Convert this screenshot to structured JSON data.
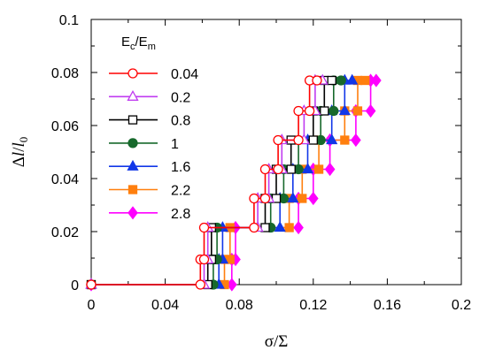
{
  "chart_data": {
    "type": "line",
    "title": "",
    "xlabel": "σ/Σ",
    "ylabel": {
      "parts": [
        "Δ",
        "l",
        "/",
        "l"
      ],
      "sub": "0"
    },
    "xlim": [
      0,
      0.2
    ],
    "ylim": [
      0,
      0.1
    ],
    "xticks": [
      "0",
      "0.04",
      "0.08",
      "0.12",
      "0.16",
      "0.2"
    ],
    "yticks": [
      "0",
      "0.02",
      "0.04",
      "0.06",
      "0.08",
      "0.1"
    ],
    "grid": false,
    "legend": {
      "title": {
        "parts": [
          "E",
          "c",
          "/E",
          "m"
        ]
      },
      "placement": "top-left"
    },
    "series": [
      {
        "name": "0.04",
        "color": "#ff0000",
        "marker": "circle",
        "filled": false,
        "x": [
          0,
          0.059,
          0.059,
          0.061,
          0.061,
          0.088,
          0.088,
          0.094,
          0.094,
          0.101,
          0.101,
          0.112,
          0.112,
          0.118,
          0.118,
          0.122
        ],
        "y": [
          0,
          0,
          0.0095,
          0.0095,
          0.0215,
          0.0215,
          0.0325,
          0.0325,
          0.0435,
          0.0435,
          0.0545,
          0.0545,
          0.0655,
          0.0655,
          0.077,
          0.077
        ]
      },
      {
        "name": "0.2",
        "color": "#c03cf0",
        "marker": "triangle",
        "filled": false,
        "x": [
          0,
          0.061,
          0.061,
          0.063,
          0.063,
          0.09,
          0.09,
          0.096,
          0.096,
          0.103,
          0.103,
          0.115,
          0.115,
          0.121,
          0.121,
          0.125
        ],
        "y": [
          0,
          0,
          0.0095,
          0.0095,
          0.0215,
          0.0215,
          0.0325,
          0.0325,
          0.0435,
          0.0435,
          0.0545,
          0.0545,
          0.0655,
          0.0655,
          0.077,
          0.077
        ]
      },
      {
        "name": "0.8",
        "color": "#000000",
        "marker": "square",
        "filled": false,
        "x": [
          0,
          0.063,
          0.063,
          0.065,
          0.065,
          0.094,
          0.094,
          0.1,
          0.1,
          0.108,
          0.108,
          0.12,
          0.12,
          0.126,
          0.126,
          0.13
        ],
        "y": [
          0,
          0,
          0.0095,
          0.0095,
          0.0215,
          0.0215,
          0.0325,
          0.0325,
          0.0435,
          0.0435,
          0.0545,
          0.0545,
          0.0655,
          0.0655,
          0.077,
          0.077
        ]
      },
      {
        "name": "1",
        "color": "#17692c",
        "marker": "circle",
        "filled": true,
        "x": [
          0,
          0.066,
          0.066,
          0.068,
          0.068,
          0.097,
          0.097,
          0.104,
          0.104,
          0.112,
          0.112,
          0.124,
          0.124,
          0.131,
          0.131,
          0.135
        ],
        "y": [
          0,
          0,
          0.0095,
          0.0095,
          0.0215,
          0.0215,
          0.0325,
          0.0325,
          0.0435,
          0.0435,
          0.0545,
          0.0545,
          0.0655,
          0.0655,
          0.077,
          0.077
        ]
      },
      {
        "name": "1.6",
        "color": "#1237e8",
        "marker": "triangle",
        "filled": true,
        "x": [
          0,
          0.069,
          0.069,
          0.071,
          0.071,
          0.102,
          0.102,
          0.109,
          0.109,
          0.117,
          0.117,
          0.13,
          0.13,
          0.137,
          0.137,
          0.141
        ],
        "y": [
          0,
          0,
          0.0095,
          0.0095,
          0.0215,
          0.0215,
          0.0325,
          0.0325,
          0.0435,
          0.0435,
          0.0545,
          0.0545,
          0.0655,
          0.0655,
          0.077,
          0.077
        ]
      },
      {
        "name": "2.2",
        "color": "#ff7f0e",
        "marker": "square",
        "filled": true,
        "x": [
          0,
          0.072,
          0.072,
          0.075,
          0.075,
          0.107,
          0.107,
          0.114,
          0.114,
          0.123,
          0.123,
          0.137,
          0.137,
          0.144,
          0.144,
          0.148
        ],
        "y": [
          0,
          0,
          0.0095,
          0.0095,
          0.0215,
          0.0215,
          0.0325,
          0.0325,
          0.0435,
          0.0435,
          0.0545,
          0.0545,
          0.0655,
          0.0655,
          0.077,
          0.077
        ]
      },
      {
        "name": "2.8",
        "color": "#ff00ff",
        "marker": "diamond",
        "filled": true,
        "x": [
          0,
          0.076,
          0.076,
          0.078,
          0.078,
          0.112,
          0.112,
          0.12,
          0.12,
          0.129,
          0.129,
          0.143,
          0.143,
          0.151,
          0.151,
          0.154
        ],
        "y": [
          0,
          0,
          0.0095,
          0.0095,
          0.0215,
          0.0215,
          0.0325,
          0.0325,
          0.0435,
          0.0435,
          0.0545,
          0.0545,
          0.0655,
          0.0655,
          0.077,
          0.077
        ]
      }
    ]
  }
}
